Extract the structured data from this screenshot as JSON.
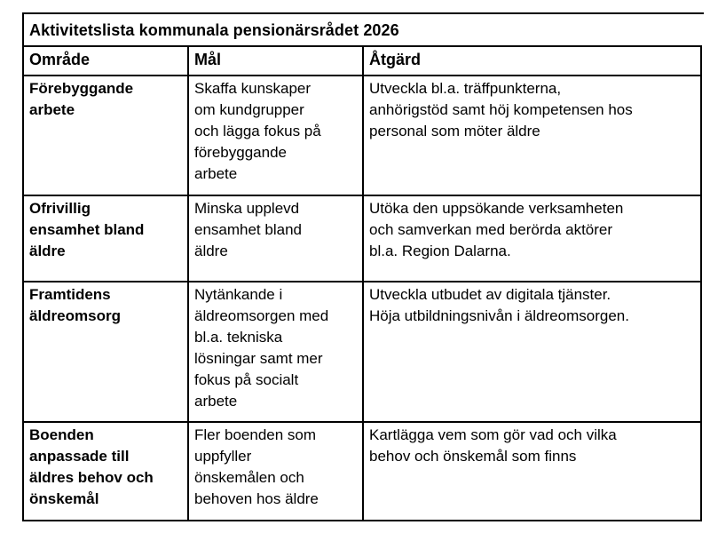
{
  "page": {
    "background_color": "#ffffff",
    "border_color": "#000000",
    "text_color": "#000000"
  },
  "table": {
    "title": "Aktivitetslista kommunala pensionärsrådet 2026",
    "columns": [
      "Område",
      "Mål",
      "Åtgärd"
    ],
    "rows": [
      {
        "omrade": "Förebyggande\narbete",
        "mal": "Skaffa kunskaper\nom kundgrupper\noch lägga fokus på\nförebyggande\narbete",
        "atgard": "Utveckla bl.a. träffpunkterna,\nanhörigstöd samt höj kompetensen hos\npersonal som möter äldre"
      },
      {
        "omrade": "Ofrivillig\nensamhet bland\näldre",
        "mal": "Minska upplevd\nensamhet bland\näldre",
        "atgard": "Utöka den uppsökande verksamheten\noch samverkan med berörda aktörer\nbl.a. Region Dalarna."
      },
      {
        "omrade": "Framtidens\näldreomsorg",
        "mal": "Nytänkande i\näldreomsorgen med\nbl.a. tekniska\nlösningar samt mer\nfokus på socialt\narbete",
        "atgard": "Utveckla utbudet av digitala tjänster.\nHöja utbildningsnivån i äldreomsorgen."
      },
      {
        "omrade": "Boenden\nanpassade till\näldres behov och\nönskemål",
        "mal": "Fler boenden som\nuppfyller\nönskemålen och\nbehoven hos äldre",
        "atgard": "Kartlägga vem som gör vad och vilka\nbehov och önskemål som finns"
      }
    ]
  }
}
